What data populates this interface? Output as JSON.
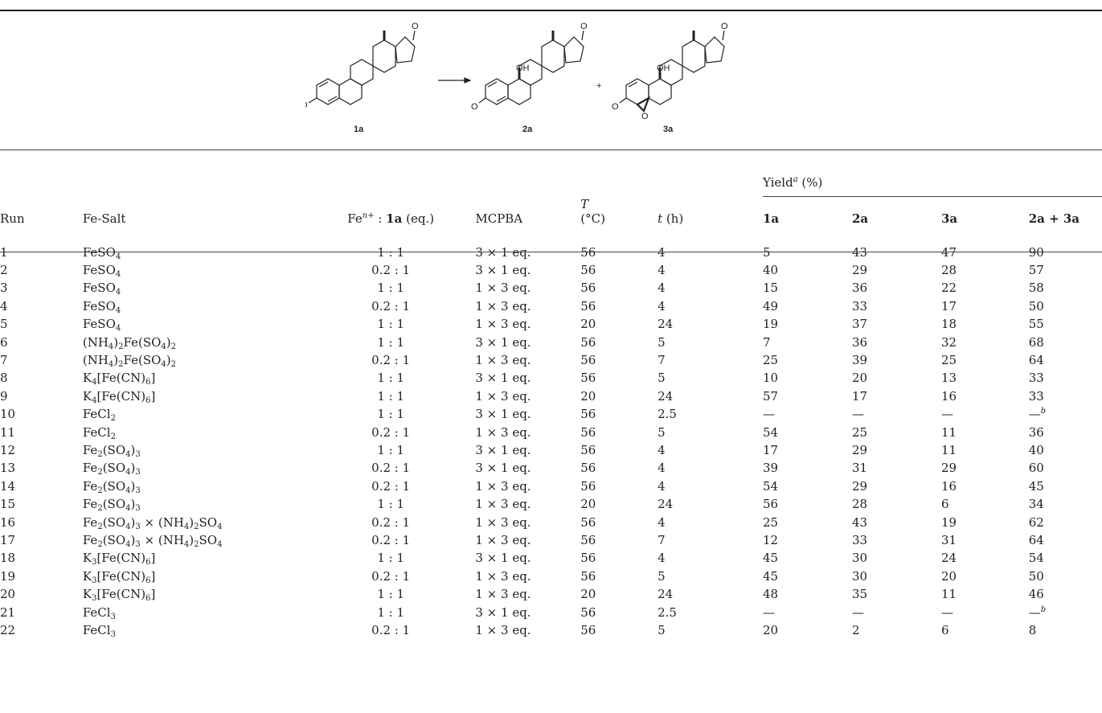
{
  "scheme": {
    "labels": [
      "1a",
      "2a",
      "3a"
    ],
    "plus": "+",
    "atoms": {
      "ho": "HO",
      "oh": "OH",
      "o": "O"
    }
  },
  "table": {
    "headers": {
      "run": "Run",
      "salt": "Fe-Salt",
      "ratio_pre": "Fe",
      "ratio_sup": "n+",
      "ratio_mid": " : ",
      "ratio_bold": "1a",
      "ratio_post": " (eq.)",
      "mcpba": "MCPBA",
      "t_label": "T",
      "t_unit": "(°C)",
      "time_italic": "t",
      "time_unit": " (h)",
      "yield_pre": "Yield",
      "yield_sup": "a",
      "yield_post": " (%)",
      "y1a": "1a",
      "y2a": "2a",
      "y3a": "3a",
      "ysum": "2a + 3a"
    },
    "rows": [
      {
        "run": "1",
        "salt": "FeSO4",
        "ratio": "1 : 1",
        "mcpba": "3 × 1 eq.",
        "T": "56",
        "t": "4",
        "y1a": "5",
        "y2a": "43",
        "y3a": "47",
        "ysum": "90"
      },
      {
        "run": "2",
        "salt": "FeSO4",
        "ratio": "0.2 : 1",
        "mcpba": "3 × 1 eq.",
        "T": "56",
        "t": "4",
        "y1a": "40",
        "y2a": "29",
        "y3a": "28",
        "ysum": "57"
      },
      {
        "run": "3",
        "salt": "FeSO4",
        "ratio": "1 : 1",
        "mcpba": "1 × 3 eq.",
        "T": "56",
        "t": "4",
        "y1a": "15",
        "y2a": "36",
        "y3a": "22",
        "ysum": "58"
      },
      {
        "run": "4",
        "salt": "FeSO4",
        "ratio": "0.2 : 1",
        "mcpba": "1 × 3 eq.",
        "T": "56",
        "t": "4",
        "y1a": "49",
        "y2a": "33",
        "y3a": "17",
        "ysum": "50"
      },
      {
        "run": "5",
        "salt": "FeSO4",
        "ratio": "1 : 1",
        "mcpba": "1 × 3 eq.",
        "T": "20",
        "t": "24",
        "y1a": "19",
        "y2a": "37",
        "y3a": "18",
        "ysum": "55"
      },
      {
        "run": "6",
        "salt": "(NH4)2Fe(SO4)2",
        "ratio": "1 : 1",
        "mcpba": "3 × 1 eq.",
        "T": "56",
        "t": "5",
        "y1a": "7",
        "y2a": "36",
        "y3a": "32",
        "ysum": "68"
      },
      {
        "run": "7",
        "salt": "(NH4)2Fe(SO4)2",
        "ratio": "0.2 : 1",
        "mcpba": "1 × 3 eq.",
        "T": "56",
        "t": "7",
        "y1a": "25",
        "y2a": "39",
        "y3a": "25",
        "ysum": "64"
      },
      {
        "run": "8",
        "salt": "K4[Fe(CN)6]",
        "ratio": "1 : 1",
        "mcpba": "3 × 1 eq.",
        "T": "56",
        "t": "5",
        "y1a": "10",
        "y2a": "20",
        "y3a": "13",
        "ysum": "33"
      },
      {
        "run": "9",
        "salt": "K4[Fe(CN)6]",
        "ratio": "1 : 1",
        "mcpba": "1 × 3 eq.",
        "T": "20",
        "t": "24",
        "y1a": "57",
        "y2a": "17",
        "y3a": "16",
        "ysum": "33"
      },
      {
        "run": "10",
        "salt": "FeCl2",
        "ratio": "1 : 1",
        "mcpba": "3 × 1 eq.",
        "T": "56",
        "t": "2.5",
        "y1a": "—",
        "y2a": "—",
        "y3a": "—",
        "ysum": "—",
        "ysum_sup": "b"
      },
      {
        "run": "11",
        "salt": "FeCl2",
        "ratio": "0.2 : 1",
        "mcpba": "1 × 3 eq.",
        "T": "56",
        "t": "5",
        "y1a": "54",
        "y2a": "25",
        "y3a": "11",
        "ysum": "36"
      },
      {
        "run": "12",
        "salt": "Fe2(SO4)3",
        "ratio": "1 : 1",
        "mcpba": "3 × 1 eq.",
        "T": "56",
        "t": "4",
        "y1a": "17",
        "y2a": "29",
        "y3a": "11",
        "ysum": "40"
      },
      {
        "run": "13",
        "salt": "Fe2(SO4)3",
        "ratio": "0.2 : 1",
        "mcpba": "3 × 1 eq.",
        "T": "56",
        "t": "4",
        "y1a": "39",
        "y2a": "31",
        "y3a": "29",
        "ysum": "60"
      },
      {
        "run": "14",
        "salt": "Fe2(SO4)3",
        "ratio": "0.2 : 1",
        "mcpba": "1 × 3 eq.",
        "T": "56",
        "t": "4",
        "y1a": "54",
        "y2a": "29",
        "y3a": "16",
        "ysum": "45"
      },
      {
        "run": "15",
        "salt": "Fe2(SO4)3",
        "ratio": "1 : 1",
        "mcpba": "1 × 3 eq.",
        "T": "20",
        "t": "24",
        "y1a": "56",
        "y2a": "28",
        "y3a": "6",
        "ysum": "34"
      },
      {
        "run": "16",
        "salt": "Fe2(SO4)3 × (NH4)2SO4",
        "ratio": "0.2 : 1",
        "mcpba": "1 × 3 eq.",
        "T": "56",
        "t": "4",
        "y1a": "25",
        "y2a": "43",
        "y3a": "19",
        "ysum": "62"
      },
      {
        "run": "17",
        "salt": "Fe2(SO4)3 × (NH4)2SO4",
        "ratio": "0.2 : 1",
        "mcpba": "1 × 3 eq.",
        "T": "56",
        "t": "7",
        "y1a": "12",
        "y2a": "33",
        "y3a": "31",
        "ysum": "64"
      },
      {
        "run": "18",
        "salt": "K3[Fe(CN)6]",
        "ratio": "1 : 1",
        "mcpba": "3 × 1 eq.",
        "T": "56",
        "t": "4",
        "y1a": "45",
        "y2a": "30",
        "y3a": "24",
        "ysum": "54"
      },
      {
        "run": "19",
        "salt": "K3[Fe(CN)6]",
        "ratio": "0.2 : 1",
        "mcpba": "1 × 3 eq.",
        "T": "56",
        "t": "5",
        "y1a": "45",
        "y2a": "30",
        "y3a": "20",
        "ysum": "50"
      },
      {
        "run": "20",
        "salt": "K3[Fe(CN)6]",
        "ratio": "1 : 1",
        "mcpba": "1 × 3 eq.",
        "T": "20",
        "t": "24",
        "y1a": "48",
        "y2a": "35",
        "y3a": "11",
        "ysum": "46"
      },
      {
        "run": "21",
        "salt": "FeCl3",
        "ratio": "1 : 1",
        "mcpba": "3 × 1 eq.",
        "T": "56",
        "t": "2.5",
        "y1a": "—",
        "y2a": "—",
        "y3a": "—",
        "ysum": "—",
        "ysum_sup": "b"
      },
      {
        "run": "22",
        "salt": "FeCl3",
        "ratio": "0.2 : 1",
        "mcpba": "1 × 3 eq.",
        "T": "56",
        "t": "5",
        "y1a": "20",
        "y2a": "2",
        "y3a": "6",
        "ysum": "8"
      }
    ]
  }
}
